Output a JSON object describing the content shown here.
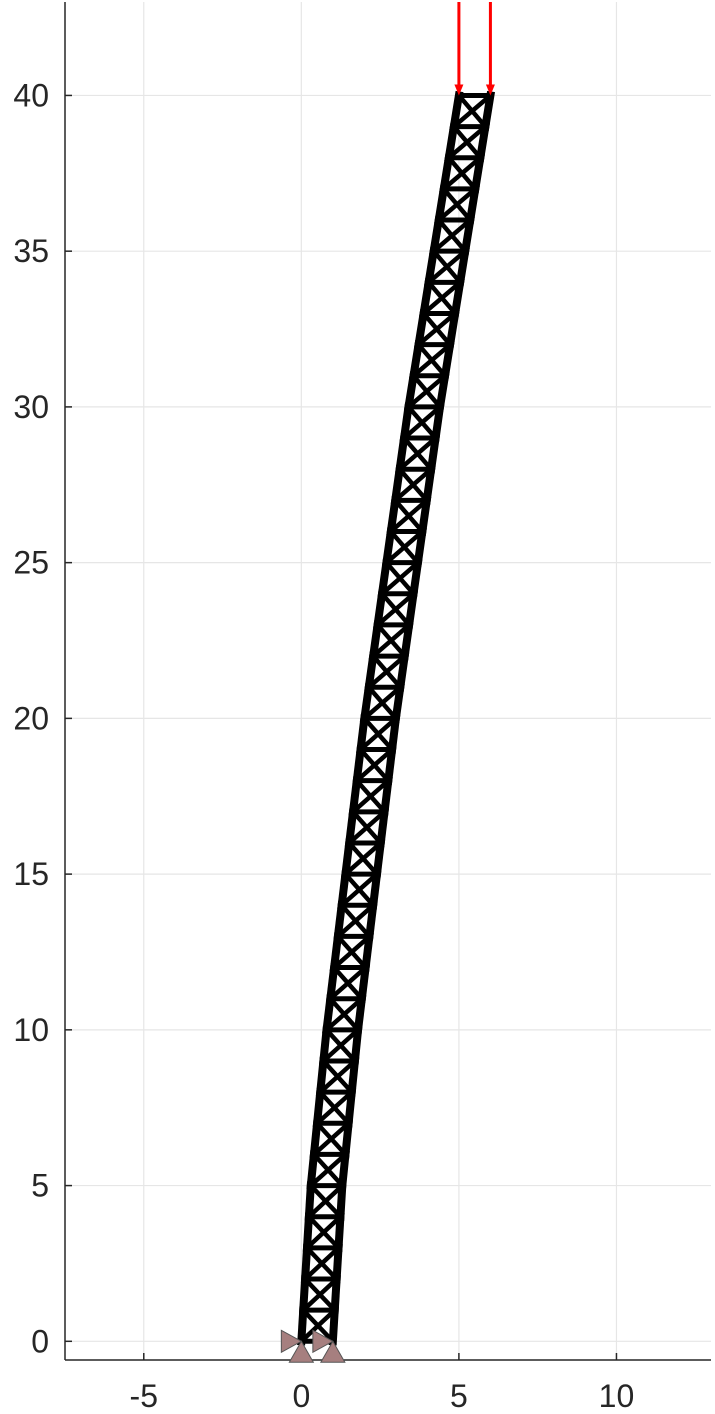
{
  "chart_data": {
    "type": "line",
    "title": "",
    "xlabel": "",
    "ylabel": "",
    "xlim": [
      -7.5,
      13
    ],
    "ylim": [
      -0.6,
      43
    ],
    "grid": true,
    "x_ticks": [
      -5,
      0,
      5,
      10
    ],
    "y_ticks": [
      0,
      5,
      10,
      15,
      20,
      25,
      30,
      35,
      40
    ],
    "x_tick_labels": [
      "-5",
      "0",
      "5",
      "10"
    ],
    "y_tick_labels": [
      "0",
      "5",
      "10",
      "15",
      "20",
      "25",
      "30",
      "35",
      "40"
    ],
    "truss": {
      "panels": 40,
      "panel_height": 1,
      "width": 1,
      "base_left": [
        0,
        0
      ],
      "base_right": [
        1,
        0
      ],
      "top_left": [
        5,
        40
      ],
      "top_right": [
        6,
        40
      ],
      "left_chord_profile": {
        "y": [
          0,
          5,
          10,
          15,
          20,
          25,
          30,
          35,
          40
        ],
        "x": [
          0,
          0.3,
          0.8,
          1.4,
          2.0,
          2.7,
          3.4,
          4.2,
          5.0
        ]
      }
    },
    "supports": [
      {
        "type": "pin",
        "x": 0,
        "y": 0
      },
      {
        "type": "pin",
        "x": 1,
        "y": 0
      }
    ],
    "loads": [
      {
        "x": 5,
        "y_from": 43,
        "y_to": 40
      },
      {
        "x": 6,
        "y_from": 43,
        "y_to": 40
      }
    ],
    "colors": {
      "truss": "#000000",
      "load": "#ff0000",
      "support": "#a67f7f",
      "grid": "#e6e6e6",
      "axis": "#262626"
    }
  }
}
